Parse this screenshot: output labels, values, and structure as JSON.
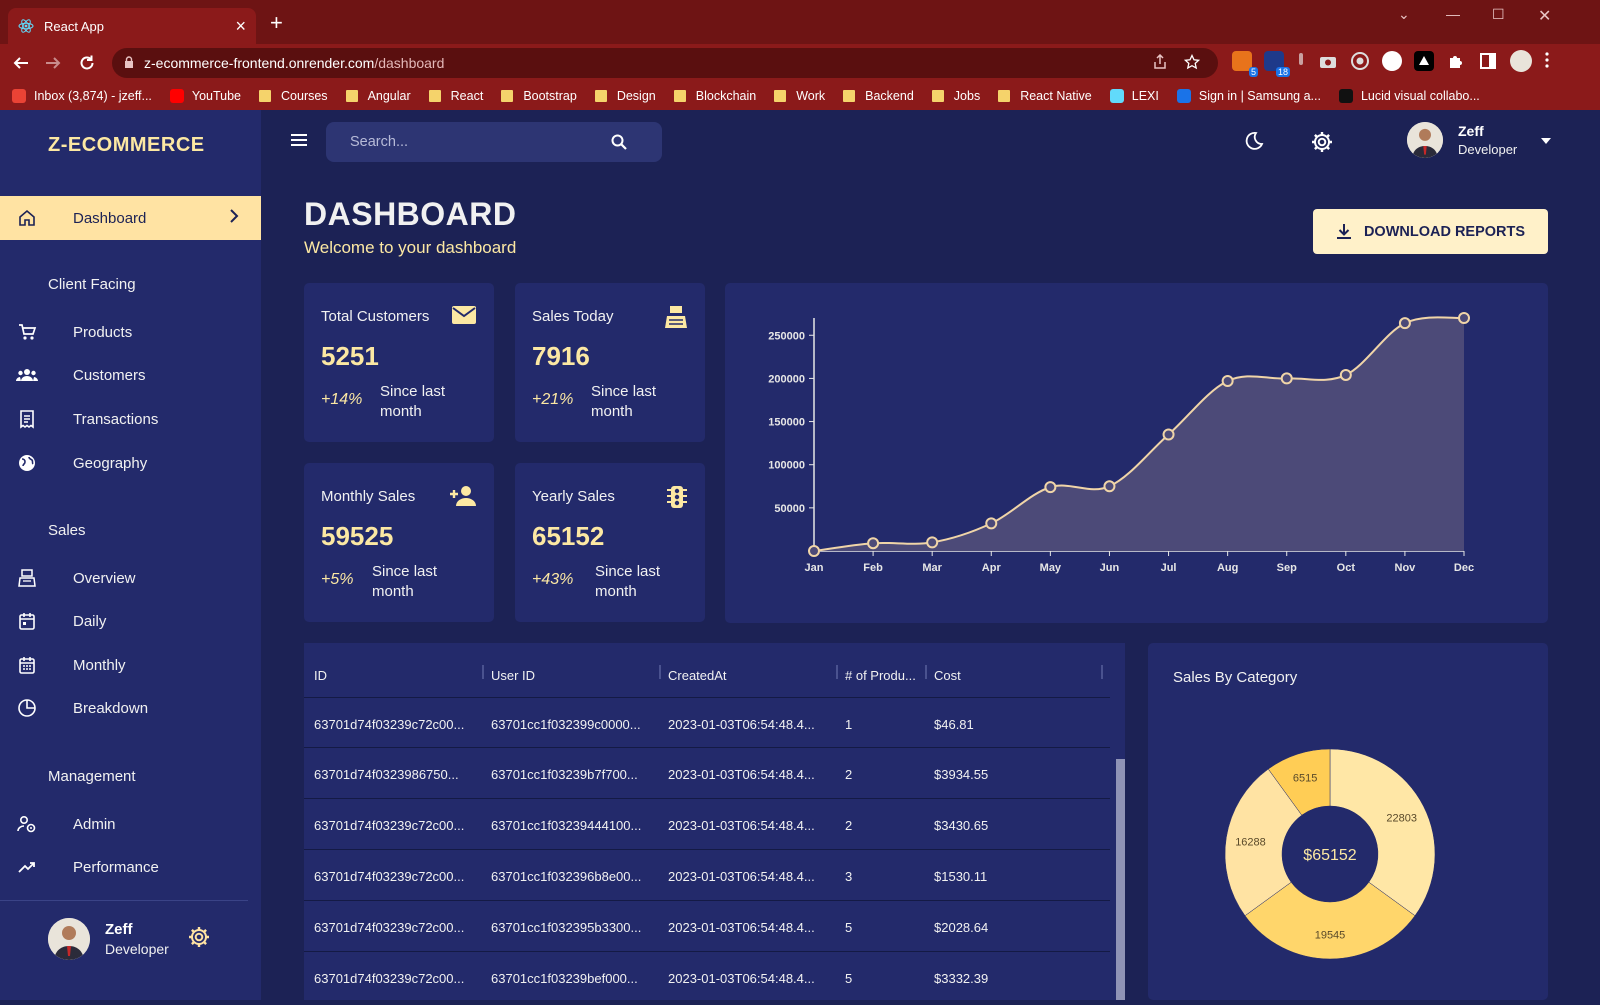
{
  "browser": {
    "tab_title": "React App",
    "url_domain": "z-ecommerce-frontend.onrender.com",
    "url_path": "/dashboard",
    "extension_badges": [
      "5",
      "18"
    ],
    "bookmarks": [
      {
        "label": "Inbox (3,874) - jzeff...",
        "icon": "gmail-icon"
      },
      {
        "label": "YouTube",
        "icon": "youtube-icon"
      },
      {
        "label": "Courses",
        "icon": "folder-icon"
      },
      {
        "label": "Angular",
        "icon": "folder-icon"
      },
      {
        "label": "React",
        "icon": "folder-icon"
      },
      {
        "label": "Bootstrap",
        "icon": "folder-icon"
      },
      {
        "label": "Design",
        "icon": "folder-icon"
      },
      {
        "label": "Blockchain",
        "icon": "folder-icon"
      },
      {
        "label": "Work",
        "icon": "folder-icon"
      },
      {
        "label": "Backend",
        "icon": "folder-icon"
      },
      {
        "label": "Jobs",
        "icon": "folder-icon"
      },
      {
        "label": "React Native",
        "icon": "folder-icon"
      },
      {
        "label": "LEXI",
        "icon": "react-icon"
      },
      {
        "label": "Sign in | Samsung a...",
        "icon": "samsung-icon"
      },
      {
        "label": "Lucid visual collabo...",
        "icon": "lucid-icon"
      }
    ]
  },
  "sidebar": {
    "brand": "Z-ECOMMERCE",
    "active_item": "Dashboard",
    "sections": {
      "client": "Client Facing",
      "sales": "Sales",
      "management": "Management"
    },
    "items": {
      "dashboard": "Dashboard",
      "products": "Products",
      "customers": "Customers",
      "transactions": "Transactions",
      "geography": "Geography",
      "overview": "Overview",
      "daily": "Daily",
      "monthly": "Monthly",
      "breakdown": "Breakdown",
      "admin": "Admin",
      "performance": "Performance"
    },
    "user": {
      "name": "Zeff",
      "role": "Developer"
    }
  },
  "topbar": {
    "search_placeholder": "Search...",
    "user": {
      "name": "Zeff",
      "role": "Developer"
    }
  },
  "header": {
    "title": "DASHBOARD",
    "subtitle": "Welcome to your dashboard",
    "download_label": "DOWNLOAD REPORTS"
  },
  "stats": {
    "total_customers": {
      "label": "Total Customers",
      "value": "5251",
      "increase": "+14%",
      "desc": "Since last month",
      "icon": "email-icon"
    },
    "sales_today": {
      "label": "Sales Today",
      "value": "7916",
      "increase": "+21%",
      "desc": "Since last month",
      "icon": "point-of-sale-icon"
    },
    "monthly_sales": {
      "label": "Monthly Sales",
      "value": "59525",
      "increase": "+5%",
      "desc": "Since last month",
      "icon": "person-add-icon"
    },
    "yearly_sales": {
      "label": "Yearly Sales",
      "value": "65152",
      "increase": "+43%",
      "desc": "Since last month",
      "icon": "traffic-icon"
    }
  },
  "chart_data": [
    {
      "type": "area",
      "title": "",
      "categories": [
        "Jan",
        "Feb",
        "Mar",
        "Apr",
        "May",
        "Jun",
        "Jul",
        "Aug",
        "Sep",
        "Oct",
        "Nov",
        "Dec"
      ],
      "values": [
        0,
        9000,
        10000,
        32000,
        74000,
        75000,
        135000,
        197000,
        200000,
        204000,
        264000,
        270000
      ],
      "ylim": [
        0,
        270000
      ],
      "yticks": [
        "50000",
        "100000",
        "150000",
        "200000",
        "250000"
      ],
      "color": "#f0d5a8"
    },
    {
      "type": "pie",
      "title": "Sales By Category",
      "center_label": "$65152",
      "slices": [
        {
          "label": "22803",
          "value": 22803,
          "color": "#ffe7a6"
        },
        {
          "label": "19545",
          "value": 19545,
          "color": "#ffd66b"
        },
        {
          "label": "16288",
          "value": 16288,
          "color": "#ffe3a3"
        },
        {
          "label": "6515",
          "value": 6515,
          "color": "#ffcd55"
        }
      ]
    }
  ],
  "table": {
    "columns": [
      "ID",
      "User ID",
      "CreatedAt",
      "# of Produ...",
      "Cost"
    ],
    "rows": [
      [
        "63701d74f03239c72c00...",
        "63701cc1f032399c0000...",
        "2023-01-03T06:54:48.4...",
        "1",
        "$46.81"
      ],
      [
        "63701d74f0323986750...",
        "63701cc1f03239b7f700...",
        "2023-01-03T06:54:48.4...",
        "2",
        "$3934.55"
      ],
      [
        "63701d74f03239c72c00...",
        "63701cc1f03239444100...",
        "2023-01-03T06:54:48.4...",
        "2",
        "$3430.65"
      ],
      [
        "63701d74f03239c72c00...",
        "63701cc1f032396b8e00...",
        "2023-01-03T06:54:48.4...",
        "3",
        "$1530.11"
      ],
      [
        "63701d74f03239c72c00...",
        "63701cc1f032395b3300...",
        "2023-01-03T06:54:48.4...",
        "5",
        "$2028.64"
      ],
      [
        "63701d74f03239c72c00...",
        "63701cc1f03239bef000...",
        "2023-01-03T06:54:48.4...",
        "5",
        "$3332.39"
      ]
    ]
  },
  "colors": {
    "background": "#1c2255",
    "panel": "#232a6b",
    "accent": "#ffe3a3",
    "chrome": "#8b1a1a"
  }
}
